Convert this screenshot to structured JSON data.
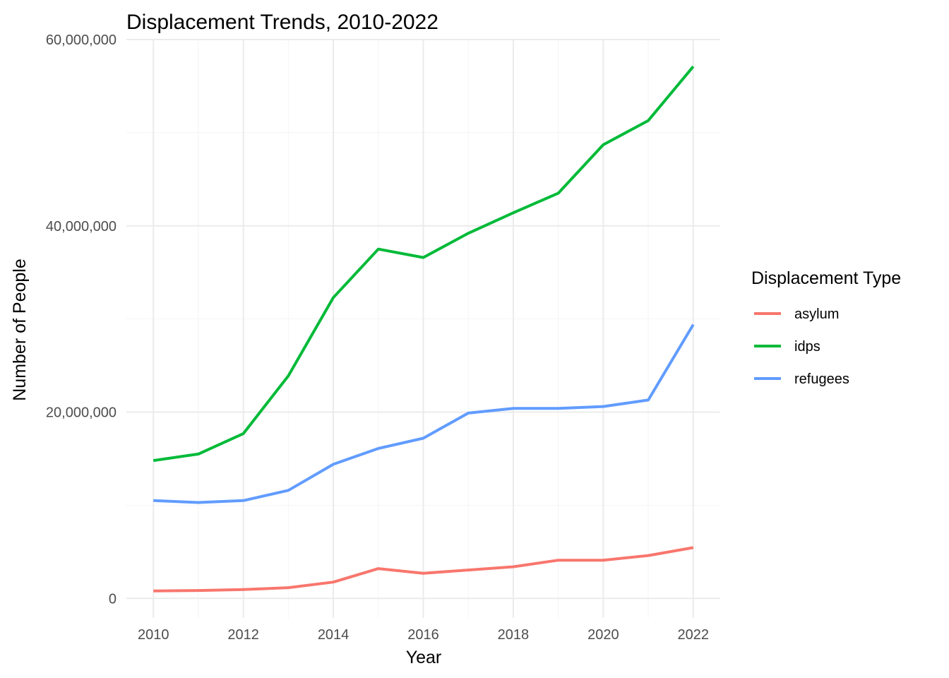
{
  "chart_data": {
    "type": "line",
    "title": "Displacement Trends, 2010-2022",
    "xlabel": "Year",
    "ylabel": "Number of People",
    "x": [
      2010,
      2011,
      2012,
      2013,
      2014,
      2015,
      2016,
      2017,
      2018,
      2019,
      2020,
      2021,
      2022
    ],
    "xlim": [
      2009.4,
      2022.6
    ],
    "ylim": [
      -2100000,
      60000000
    ],
    "x_ticks": [
      2010,
      2012,
      2014,
      2016,
      2018,
      2020,
      2022
    ],
    "x_tick_labels": [
      "2010",
      "2012",
      "2014",
      "2016",
      "2018",
      "2020",
      "2022"
    ],
    "y_ticks": [
      0,
      20000000,
      40000000,
      60000000
    ],
    "y_tick_labels": [
      "0",
      "20,000,000",
      "40,000,000",
      "60,000,000"
    ],
    "y_minor_ticks": [
      10000000,
      30000000,
      50000000
    ],
    "grid": true,
    "legend": {
      "title": "Displacement Type",
      "position": "right"
    },
    "series": [
      {
        "name": "asylum",
        "color": "#F8766D",
        "values": [
          800000,
          850000,
          950000,
          1150000,
          1750000,
          3200000,
          2700000,
          3050000,
          3400000,
          4100000,
          4100000,
          4600000,
          5450000
        ]
      },
      {
        "name": "idps",
        "color": "#00BA38",
        "values": [
          14800000,
          15500000,
          17700000,
          23900000,
          32300000,
          37500000,
          36600000,
          39200000,
          41400000,
          43500000,
          48700000,
          51300000,
          57100000
        ]
      },
      {
        "name": "refugees",
        "color": "#619CFF",
        "values": [
          10500000,
          10300000,
          10500000,
          11600000,
          14400000,
          16100000,
          17200000,
          19900000,
          20400000,
          20400000,
          20600000,
          21300000,
          29400000
        ]
      }
    ]
  }
}
